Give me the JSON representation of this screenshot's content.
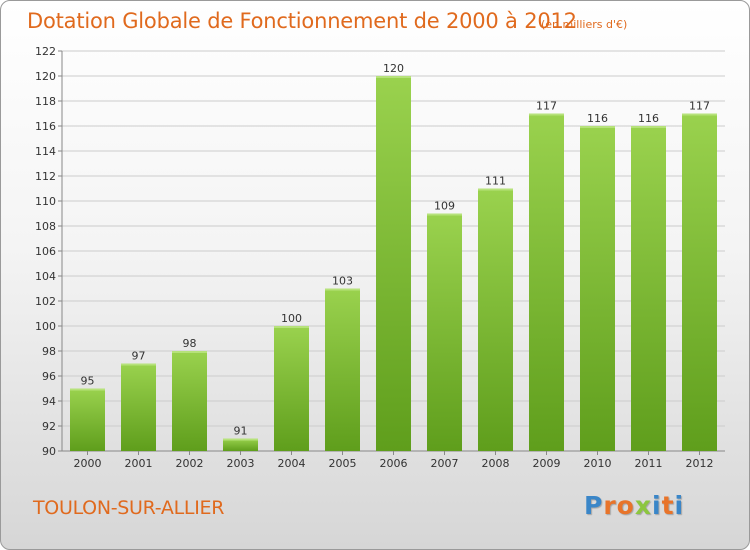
{
  "title": "Dotation Globale de Fonctionnement de 2000 à 2012",
  "unit_note": "(en milliers d'€)",
  "commune": "TOULON-SUR-ALLIER",
  "logo": {
    "letters": [
      "P",
      "r",
      "o",
      "x",
      "i",
      "t",
      "i"
    ],
    "colors": [
      "#3a86c8",
      "#e8742a",
      "#e8742a",
      "#8cc63f",
      "#3a86c8",
      "#e8742a",
      "#3a86c8"
    ]
  },
  "colors": {
    "title": "#e06a1e",
    "bar_light": "#9ad24e",
    "bar_dark": "#5f9e1c",
    "grid": "#cccccc",
    "axis": "#888888"
  },
  "chart_data": {
    "type": "bar",
    "title": "Dotation Globale de Fonctionnement de 2000 à 2012",
    "xlabel": "",
    "ylabel": "",
    "categories": [
      "2000",
      "2001",
      "2002",
      "2003",
      "2004",
      "2005",
      "2006",
      "2007",
      "2008",
      "2009",
      "2010",
      "2011",
      "2012"
    ],
    "values": [
      95,
      97,
      98,
      91,
      100,
      103,
      120,
      109,
      111,
      117,
      116,
      116,
      117
    ],
    "ylim": [
      90,
      122
    ],
    "yticks": [
      90,
      92,
      94,
      96,
      98,
      100,
      102,
      104,
      106,
      108,
      110,
      112,
      114,
      116,
      118,
      120,
      122
    ],
    "grid": true
  }
}
